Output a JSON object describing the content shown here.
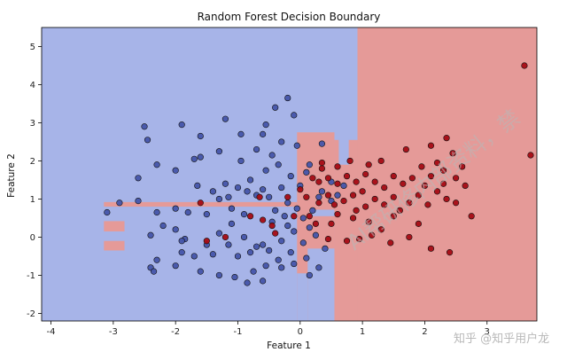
{
  "chart_data": {
    "type": "scatter",
    "title": "Random Forest Decision Boundary",
    "xlabel": "Feature 1",
    "ylabel": "Feature 2",
    "xlim": [
      -4.15,
      3.8
    ],
    "ylim": [
      -2.2,
      5.5
    ],
    "xticks": [
      -4,
      -3,
      -2,
      -1,
      0,
      1,
      2,
      3
    ],
    "yticks": [
      -2,
      -1,
      0,
      1,
      2,
      3,
      4,
      5
    ],
    "grid": false,
    "colors": {
      "region_class0": "#a7b4e8",
      "region_class1": "#e59a98",
      "point_class0": "#4455aa",
      "point_class1": "#a50b14",
      "point_edge": "#111111"
    },
    "regions": [
      {
        "class": 1,
        "x": [
          0.92,
          3.8
        ],
        "y": [
          -2.2,
          5.5
        ]
      },
      {
        "class": 1,
        "x": [
          0.55,
          0.92
        ],
        "y": [
          -2.2,
          2.55
        ]
      },
      {
        "class": 1,
        "x": [
          -0.05,
          0.55
        ],
        "y": [
          -2.2,
          2.75
        ]
      },
      {
        "class": 0,
        "x": [
          -0.05,
          0.12
        ],
        "y": [
          -2.2,
          -0.95
        ]
      },
      {
        "class": 0,
        "x": [
          0.12,
          0.55
        ],
        "y": [
          -2.2,
          -0.3
        ]
      },
      {
        "class": 0,
        "x": [
          0.15,
          0.55
        ],
        "y": [
          0.55,
          0.72
        ]
      },
      {
        "class": 1,
        "x": [
          -3.15,
          -0.05
        ],
        "y": [
          0.8,
          0.92
        ]
      },
      {
        "class": 1,
        "x": [
          -3.15,
          -2.82
        ],
        "y": [
          0.15,
          0.42
        ]
      },
      {
        "class": 1,
        "x": [
          -3.15,
          -2.82
        ],
        "y": [
          -0.35,
          -0.1
        ]
      },
      {
        "class": 0,
        "x": [
          0.62,
          0.78
        ],
        "y": [
          1.9,
          2.6
        ]
      }
    ],
    "series": [
      {
        "class": 0,
        "points": [
          [
            -2.5,
            2.9
          ],
          [
            -2.45,
            2.55
          ],
          [
            -1.9,
            2.95
          ],
          [
            -1.6,
            2.65
          ],
          [
            -1.2,
            3.1
          ],
          [
            -0.95,
            2.7
          ],
          [
            -0.6,
            2.7
          ],
          [
            -0.55,
            2.95
          ],
          [
            -0.4,
            3.4
          ],
          [
            -0.2,
            3.65
          ],
          [
            -0.1,
            3.2
          ],
          [
            -0.3,
            2.5
          ],
          [
            -0.45,
            2.15
          ],
          [
            -0.7,
            2.3
          ],
          [
            -0.95,
            2.0
          ],
          [
            -1.3,
            2.25
          ],
          [
            -1.6,
            2.1
          ],
          [
            -1.7,
            2.05
          ],
          [
            -2.0,
            1.75
          ],
          [
            -2.3,
            1.9
          ],
          [
            -2.6,
            1.55
          ],
          [
            -0.05,
            2.4
          ],
          [
            0.35,
            2.45
          ],
          [
            -3.1,
            0.65
          ],
          [
            -2.9,
            0.9
          ],
          [
            -2.6,
            0.95
          ],
          [
            -2.3,
            0.65
          ],
          [
            -2.0,
            0.75
          ],
          [
            -1.8,
            0.65
          ],
          [
            -1.5,
            0.6
          ],
          [
            -1.3,
            1.0
          ],
          [
            -1.1,
            0.75
          ],
          [
            -0.9,
            0.6
          ],
          [
            -0.7,
            1.1
          ],
          [
            -0.5,
            1.05
          ],
          [
            -0.3,
            1.3
          ],
          [
            -0.2,
            0.9
          ],
          [
            0.0,
            1.35
          ],
          [
            -1.0,
            1.3
          ],
          [
            -1.2,
            1.4
          ],
          [
            -0.8,
            1.5
          ],
          [
            -0.55,
            1.75
          ],
          [
            -0.35,
            1.9
          ],
          [
            -0.15,
            1.6
          ],
          [
            0.1,
            1.7
          ],
          [
            0.15,
            1.9
          ],
          [
            -1.65,
            1.35
          ],
          [
            -1.4,
            1.2
          ],
          [
            -1.15,
            1.05
          ],
          [
            -0.85,
            1.2
          ],
          [
            -0.6,
            1.25
          ],
          [
            -0.4,
            0.7
          ],
          [
            -0.25,
            0.55
          ],
          [
            -0.05,
            0.75
          ],
          [
            0.2,
            0.7
          ],
          [
            -2.2,
            0.3
          ],
          [
            -2.4,
            0.05
          ],
          [
            -2.0,
            0.2
          ],
          [
            -1.85,
            -0.05
          ],
          [
            -1.5,
            -0.2
          ],
          [
            -1.3,
            0.1
          ],
          [
            -1.1,
            0.35
          ],
          [
            -0.9,
            0.0
          ],
          [
            -0.7,
            -0.25
          ],
          [
            -0.5,
            -0.35
          ],
          [
            -0.3,
            -0.1
          ],
          [
            -0.1,
            0.15
          ],
          [
            0.15,
            0.25
          ],
          [
            0.25,
            0.05
          ],
          [
            0.05,
            -0.15
          ],
          [
            -0.15,
            -0.4
          ],
          [
            -0.35,
            -0.6
          ],
          [
            -0.6,
            -0.2
          ],
          [
            -0.8,
            -0.4
          ],
          [
            -1.0,
            -0.5
          ],
          [
            -1.15,
            -0.2
          ],
          [
            -1.4,
            -0.45
          ],
          [
            -1.7,
            -0.5
          ],
          [
            -1.9,
            -0.1
          ],
          [
            -2.3,
            -0.6
          ],
          [
            -2.4,
            -0.8
          ],
          [
            -2.35,
            -0.9
          ],
          [
            -2.0,
            -0.75
          ],
          [
            -1.6,
            -0.9
          ],
          [
            -1.3,
            -1.0
          ],
          [
            -1.05,
            -1.05
          ],
          [
            -0.85,
            -1.2
          ],
          [
            -0.75,
            -0.9
          ],
          [
            -0.55,
            -0.75
          ],
          [
            -0.3,
            -0.8
          ],
          [
            -0.1,
            -0.7
          ],
          [
            0.15,
            -1.0
          ],
          [
            0.3,
            -0.8
          ],
          [
            0.1,
            -0.55
          ],
          [
            0.4,
            -0.3
          ],
          [
            -0.6,
            -1.15
          ],
          [
            -1.9,
            -0.4
          ],
          [
            0.3,
            1.05
          ],
          [
            0.5,
            0.95
          ],
          [
            0.6,
            1.1
          ],
          [
            0.5,
            1.45
          ],
          [
            0.35,
            1.2
          ],
          [
            0.7,
            1.35
          ],
          [
            -0.2,
            0.3
          ],
          [
            -0.45,
            0.4
          ],
          [
            0.05,
            0.5
          ]
        ]
      },
      {
        "class": 1,
        "points": [
          [
            3.6,
            4.5
          ],
          [
            3.7,
            2.15
          ],
          [
            2.35,
            2.6
          ],
          [
            2.1,
            2.4
          ],
          [
            1.7,
            2.3
          ],
          [
            1.3,
            2.0
          ],
          [
            1.1,
            1.9
          ],
          [
            0.8,
            2.0
          ],
          [
            0.6,
            1.85
          ],
          [
            0.35,
            1.8
          ],
          [
            0.2,
            1.55
          ],
          [
            0.0,
            1.25
          ],
          [
            0.1,
            1.05
          ],
          [
            0.3,
            0.9
          ],
          [
            0.45,
            1.1
          ],
          [
            0.55,
            0.85
          ],
          [
            0.7,
            0.95
          ],
          [
            0.85,
            1.1
          ],
          [
            0.9,
            0.7
          ],
          [
            1.05,
            0.8
          ],
          [
            1.2,
            1.0
          ],
          [
            1.35,
            0.85
          ],
          [
            1.5,
            1.05
          ],
          [
            1.6,
            0.7
          ],
          [
            1.75,
            0.9
          ],
          [
            1.9,
            1.1
          ],
          [
            2.05,
            0.85
          ],
          [
            2.2,
            1.2
          ],
          [
            2.35,
            1.0
          ],
          [
            2.5,
            0.9
          ],
          [
            2.65,
            1.35
          ],
          [
            2.75,
            0.55
          ],
          [
            2.1,
            1.6
          ],
          [
            1.95,
            1.85
          ],
          [
            1.8,
            1.55
          ],
          [
            1.65,
            1.4
          ],
          [
            1.5,
            1.6
          ],
          [
            1.35,
            1.3
          ],
          [
            1.2,
            1.45
          ],
          [
            1.05,
            1.65
          ],
          [
            0.9,
            1.45
          ],
          [
            0.75,
            1.6
          ],
          [
            0.6,
            1.4
          ],
          [
            0.45,
            1.55
          ],
          [
            0.3,
            1.45
          ],
          [
            2.3,
            1.75
          ],
          [
            2.45,
            2.2
          ],
          [
            2.2,
            1.95
          ],
          [
            2.0,
            1.35
          ],
          [
            2.5,
            1.55
          ],
          [
            2.6,
            1.85
          ],
          [
            0.85,
            0.5
          ],
          [
            0.6,
            0.6
          ],
          [
            1.1,
            0.4
          ],
          [
            1.3,
            0.2
          ],
          [
            1.5,
            0.55
          ],
          [
            1.9,
            0.35
          ],
          [
            2.1,
            -0.3
          ],
          [
            2.4,
            -0.4
          ],
          [
            1.75,
            0.0
          ],
          [
            1.45,
            -0.15
          ],
          [
            1.15,
            0.05
          ],
          [
            0.95,
            -0.05
          ],
          [
            0.25,
            0.35
          ],
          [
            0.45,
            -0.05
          ],
          [
            0.75,
            -0.1
          ],
          [
            0.35,
            1.95
          ],
          [
            0.15,
            0.55
          ],
          [
            -0.2,
            1.05
          ],
          [
            -0.6,
            0.45
          ],
          [
            -1.2,
            0.0
          ],
          [
            -1.5,
            -0.1
          ],
          [
            -1.6,
            0.9
          ],
          [
            -0.8,
            0.55
          ],
          [
            -0.45,
            0.3
          ],
          [
            -0.1,
            0.55
          ],
          [
            -0.65,
            1.05
          ],
          [
            1.0,
            1.2
          ],
          [
            0.5,
            0.35
          ],
          [
            2.3,
            1.4
          ],
          [
            -0.4,
            0.1
          ]
        ]
      }
    ]
  },
  "watermark": {
    "diagonal_text": "AI帮研修内部资料，禁",
    "corner_text": "知乎 @知乎用户龙"
  }
}
